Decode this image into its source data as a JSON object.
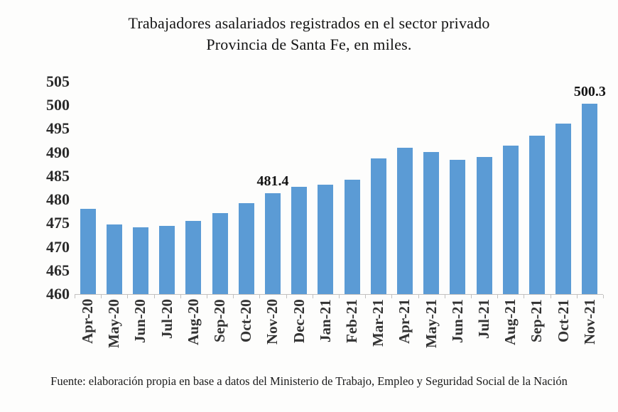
{
  "title": {
    "line1": "Trabajadores asalariados registrados en el sector privado",
    "line2": "Provincia de Santa Fe, en miles."
  },
  "footer": "Fuente: elaboración propia en base a datos del Ministerio de Trabajo, Empleo y Seguridad Social de la Nación",
  "colors": {
    "bar": "#5B9BD5",
    "axis": "#C2C1C0",
    "text": "#141414"
  },
  "chart_data": {
    "type": "bar",
    "title": "Trabajadores asalariados registrados en el sector privado — Provincia de Santa Fe, en miles.",
    "categories": [
      "Apr-20",
      "May-20",
      "Jun-20",
      "Jul-20",
      "Aug-20",
      "Sep-20",
      "Oct-20",
      "Nov-20",
      "Dec-20",
      "Jan-21",
      "Feb-21",
      "Mar-21",
      "Apr-21",
      "May-21",
      "Jun-21",
      "Jul-21",
      "Aug-21",
      "Sep-21",
      "Oct-21",
      "Nov-21"
    ],
    "values": [
      478.1,
      474.7,
      474.1,
      474.4,
      475.5,
      477.1,
      479.2,
      481.4,
      482.8,
      483.2,
      484.3,
      488.7,
      491.0,
      490.1,
      488.5,
      489.0,
      491.4,
      493.6,
      496.1,
      500.3
    ],
    "xlabel": "",
    "ylabel": "",
    "ylim": [
      460,
      505
    ],
    "yticks": [
      505,
      500,
      495,
      490,
      485,
      480,
      475,
      470,
      465,
      460
    ],
    "grid": false,
    "legend": false,
    "annotations": [
      {
        "category": "Nov-20",
        "index": 7,
        "label": "481.4"
      },
      {
        "category": "Nov-21",
        "index": 19,
        "label": "500.3"
      }
    ]
  }
}
